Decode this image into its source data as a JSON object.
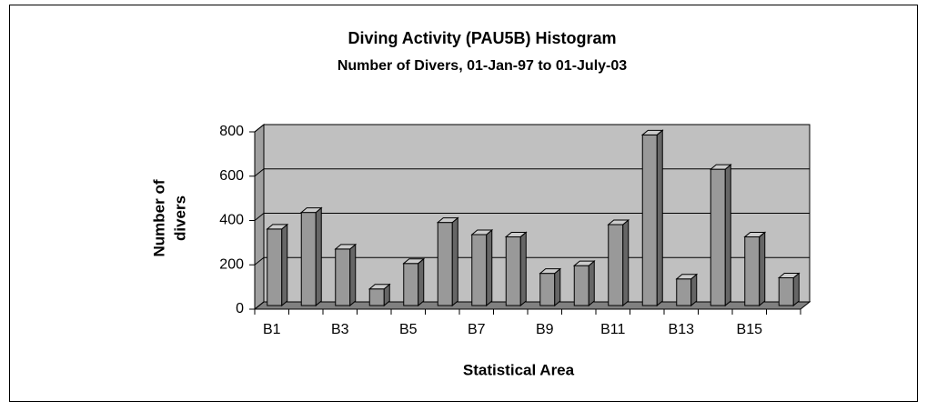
{
  "chart_data": {
    "type": "bar3d",
    "title": "Diving Activity (PAU5B) Histogram",
    "subtitle": "Number of Divers, 01-Jan-97 to 01-July-03",
    "xlabel": "Statistical Area",
    "ylabel": [
      "Number of",
      "divers"
    ],
    "categories": [
      "B1",
      null,
      "B3",
      null,
      "B5",
      null,
      "B7",
      null,
      "B9",
      null,
      "B11",
      null,
      "B13",
      null,
      "B15",
      null
    ],
    "values": [
      345,
      420,
      255,
      75,
      190,
      375,
      320,
      310,
      145,
      180,
      365,
      770,
      120,
      615,
      310,
      125
    ],
    "color": "#999999",
    "ylim": [
      0,
      800
    ],
    "yticks": [
      0,
      200,
      400,
      600,
      800
    ],
    "grid": true
  }
}
